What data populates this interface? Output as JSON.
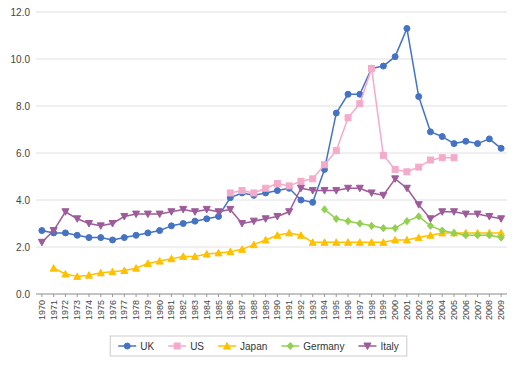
{
  "chart_data": {
    "type": "line",
    "x": [
      1970,
      1971,
      1972,
      1973,
      1974,
      1975,
      1976,
      1977,
      1978,
      1979,
      1980,
      1981,
      1982,
      1983,
      1984,
      1985,
      1986,
      1987,
      1988,
      1989,
      1990,
      1991,
      1992,
      1993,
      1994,
      1995,
      1996,
      1997,
      1998,
      1999,
      2000,
      2001,
      2002,
      2003,
      2004,
      2005,
      2006,
      2007,
      2008,
      2009
    ],
    "series": [
      {
        "name": "UK",
        "color": "#4472C4",
        "marker": "circle",
        "values": [
          2.7,
          2.6,
          2.6,
          2.5,
          2.4,
          2.4,
          2.3,
          2.4,
          2.5,
          2.6,
          2.7,
          2.9,
          3.0,
          3.1,
          3.2,
          3.3,
          4.1,
          4.3,
          4.2,
          4.3,
          4.4,
          4.5,
          4.0,
          3.9,
          5.3,
          7.7,
          8.5,
          8.5,
          9.6,
          9.7,
          10.1,
          11.3,
          8.4,
          6.9,
          6.7,
          6.4,
          6.5,
          6.4,
          6.6,
          6.2
        ]
      },
      {
        "name": "US",
        "color": "#F4ABCA",
        "marker": "square",
        "values": [
          null,
          null,
          null,
          null,
          null,
          null,
          null,
          null,
          null,
          null,
          null,
          null,
          null,
          null,
          null,
          null,
          4.3,
          4.4,
          4.3,
          4.5,
          4.7,
          4.6,
          4.8,
          4.9,
          5.5,
          6.1,
          7.5,
          8.1,
          9.6,
          5.9,
          5.3,
          5.2,
          5.4,
          5.7,
          5.8,
          5.8,
          null,
          null,
          null,
          null
        ]
      },
      {
        "name": "Japan",
        "color": "#FFC000",
        "marker": "triangle-up",
        "values": [
          null,
          1.1,
          0.85,
          0.75,
          0.8,
          0.9,
          0.95,
          1.0,
          1.1,
          1.3,
          1.4,
          1.5,
          1.6,
          1.6,
          1.7,
          1.75,
          1.8,
          1.9,
          2.1,
          2.3,
          2.5,
          2.6,
          2.5,
          2.2,
          2.2,
          2.2,
          2.2,
          2.2,
          2.2,
          2.2,
          2.3,
          2.3,
          2.4,
          2.5,
          2.6,
          2.6,
          2.6,
          2.6,
          2.6,
          2.6
        ]
      },
      {
        "name": "Germany",
        "color": "#92D050",
        "marker": "diamond",
        "values": [
          null,
          null,
          null,
          null,
          null,
          null,
          null,
          null,
          null,
          null,
          null,
          null,
          null,
          null,
          null,
          null,
          null,
          null,
          null,
          null,
          null,
          null,
          null,
          null,
          3.6,
          3.2,
          3.1,
          3.0,
          2.9,
          2.8,
          2.8,
          3.1,
          3.3,
          2.9,
          2.7,
          2.6,
          2.5,
          2.5,
          2.5,
          2.4
        ]
      },
      {
        "name": "Italy",
        "color": "#9E5B9A",
        "marker": "triangle-down",
        "values": [
          2.2,
          2.7,
          3.5,
          3.2,
          3.0,
          2.9,
          3.0,
          3.3,
          3.4,
          3.4,
          3.4,
          3.5,
          3.6,
          3.5,
          3.6,
          3.5,
          3.6,
          3.0,
          3.1,
          3.2,
          3.3,
          3.5,
          4.5,
          4.4,
          4.4,
          4.4,
          4.5,
          4.5,
          4.3,
          4.2,
          4.9,
          4.5,
          3.8,
          3.2,
          3.5,
          3.5,
          3.4,
          3.4,
          3.3,
          3.2
        ]
      }
    ],
    "xlim": [
      1969.5,
      2009.5
    ],
    "xticks": [
      1970,
      1971,
      1972,
      1973,
      1974,
      1975,
      1976,
      1977,
      1978,
      1979,
      1980,
      1981,
      1982,
      1983,
      1984,
      1985,
      1986,
      1987,
      1988,
      1989,
      1990,
      1991,
      1992,
      1993,
      1994,
      1995,
      1996,
      1997,
      1998,
      1999,
      2000,
      2001,
      2002,
      2003,
      2004,
      2005,
      2006,
      2007,
      2008,
      2009
    ],
    "ylim": [
      0.0,
      12.0
    ],
    "yticks": [
      {
        "value": 0.0,
        "label": "0.0"
      },
      {
        "value": 2.0,
        "label": "2.0"
      },
      {
        "value": 4.0,
        "label": "4.0"
      },
      {
        "value": 6.0,
        "label": "6.0"
      },
      {
        "value": 8.0,
        "label": "8.0"
      },
      {
        "value": 10.0,
        "label": "10.0"
      },
      {
        "value": 12.0,
        "label": "12.0"
      }
    ],
    "grid": true,
    "legend": "bottom"
  }
}
